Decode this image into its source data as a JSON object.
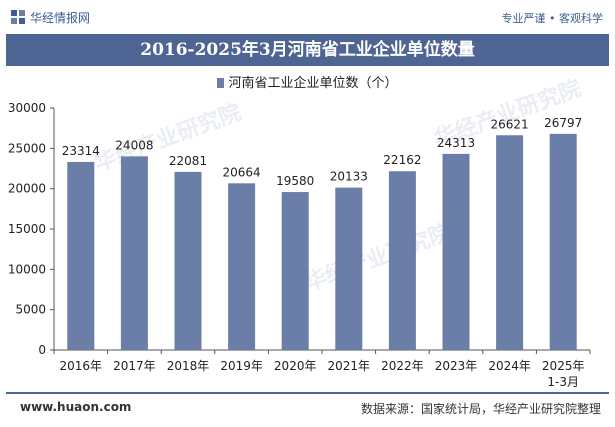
{
  "header": {
    "brand": "华经情报网",
    "right_text": "专业严谨 • 客观科学"
  },
  "title": "2016-2025年3月河南省工业企业单位数量",
  "legend": "河南省工业企业单位数（个）",
  "footer": {
    "left": "www.huaon.com",
    "right": "数据来源：国家统计局，华经产业研究院整理"
  },
  "colors": {
    "bar": "#6a7ea7",
    "title_bg": "#4e6593",
    "brand": "#3e5d93"
  },
  "chart_data": {
    "type": "bar",
    "categories": [
      "2016年",
      "2017年",
      "2018年",
      "2019年",
      "2020年",
      "2021年",
      "2022年",
      "2023年",
      "2024年",
      "2025年\n1-3月"
    ],
    "series": [
      {
        "name": "河南省工业企业单位数（个）",
        "values": [
          23314,
          24008,
          22081,
          20664,
          19580,
          20133,
          22162,
          24313,
          26621,
          26797
        ]
      }
    ],
    "yticks": [
      0,
      5000,
      10000,
      15000,
      20000,
      25000,
      30000
    ],
    "ylim": [
      0,
      30000
    ],
    "grid": false,
    "legend_position": "top"
  }
}
